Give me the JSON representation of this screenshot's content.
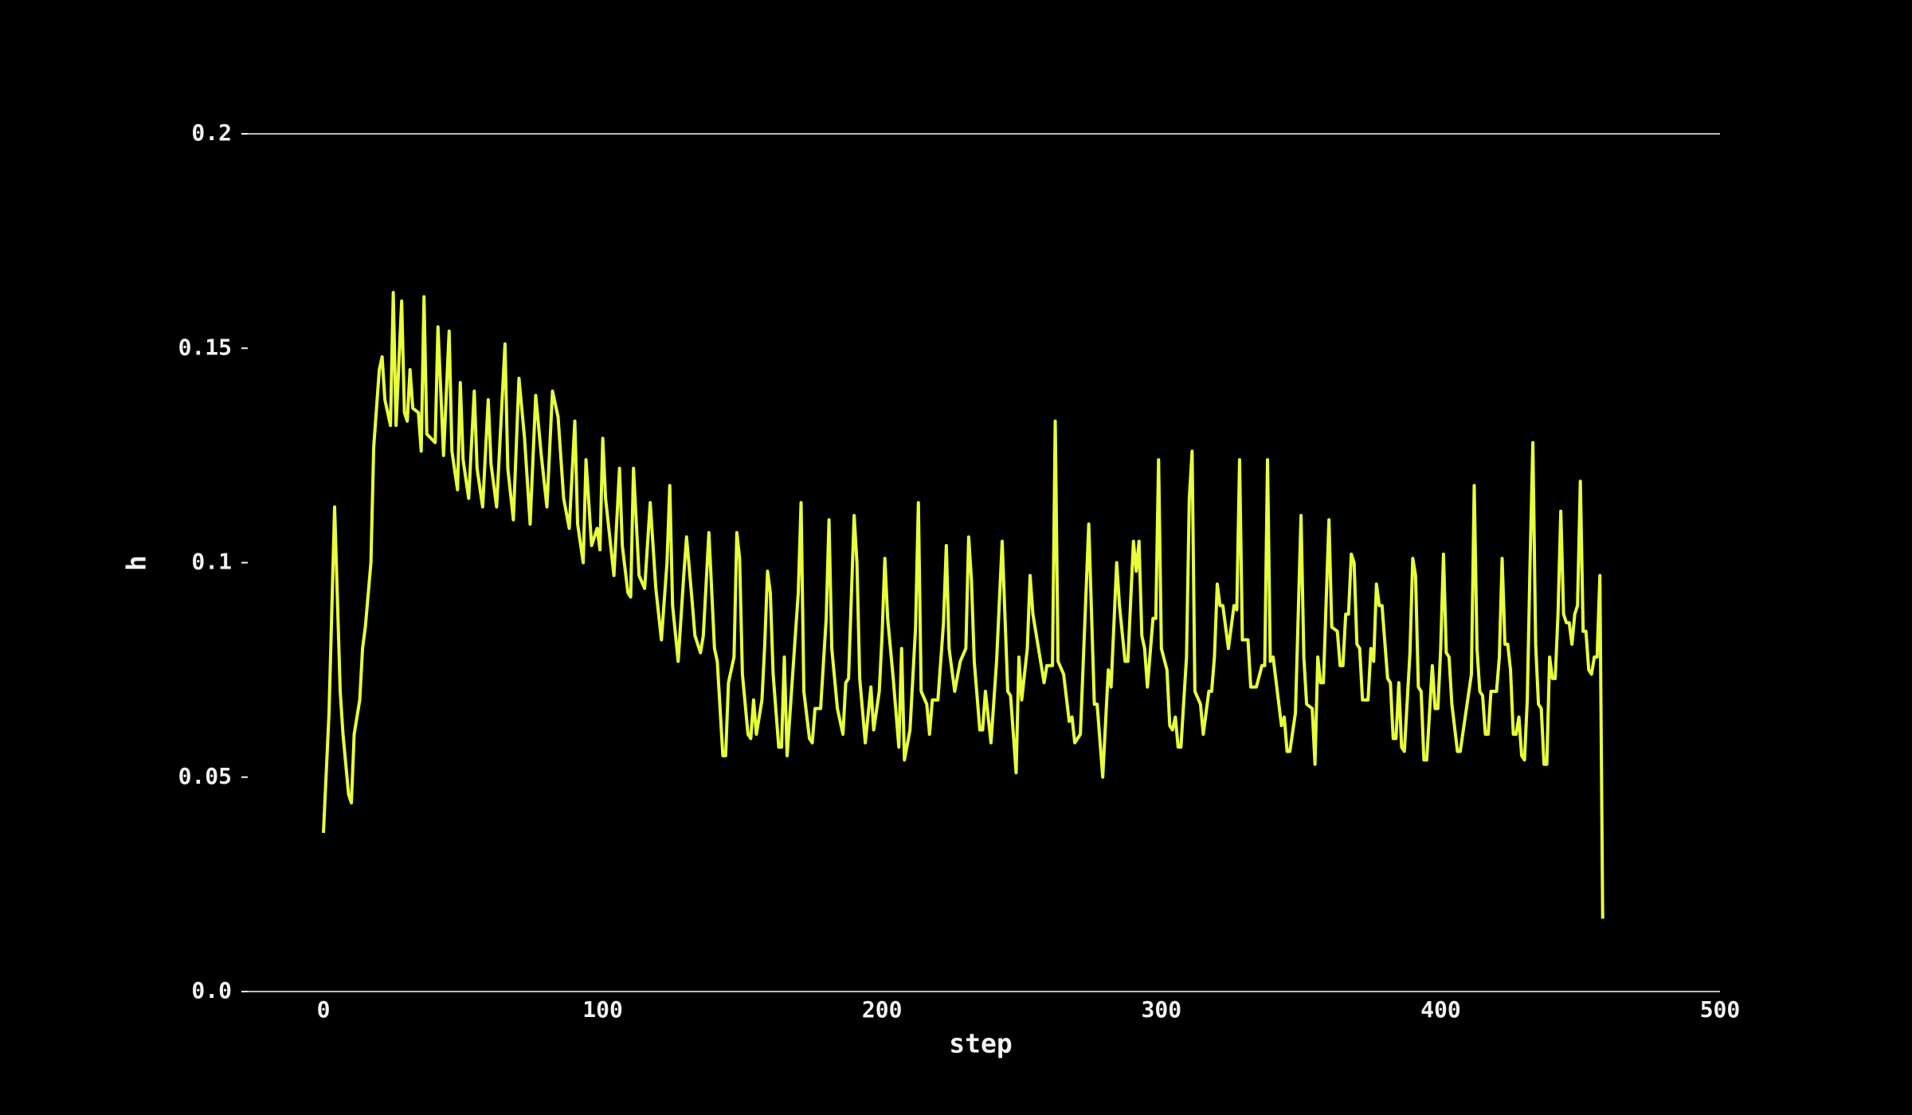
{
  "chart_data": {
    "type": "line",
    "xlabel": "step",
    "ylabel": "h",
    "color": "#e8ff3c",
    "xlim": [
      0,
      500
    ],
    "xticks": [
      0,
      100,
      200,
      300,
      400,
      500
    ],
    "ylim": [
      0,
      0.2
    ],
    "yticks": [
      {
        "value": 0,
        "label": "0.0"
      },
      0.05,
      0.1,
      0.15,
      0.2
    ],
    "x": [
      0,
      2,
      4,
      6,
      7,
      9,
      10,
      11,
      13,
      14,
      15,
      17,
      18,
      20,
      21,
      22,
      24,
      25,
      26,
      28,
      29,
      30,
      31,
      32,
      34,
      35,
      36,
      37,
      40,
      41,
      43,
      45,
      46,
      48,
      49,
      50,
      52,
      54,
      55,
      57,
      59,
      60,
      62,
      65,
      66,
      68,
      70,
      72,
      74,
      76,
      78,
      80,
      82,
      84,
      86,
      88,
      90,
      91,
      93,
      94,
      96,
      98,
      99,
      100,
      101,
      104,
      106,
      107,
      109,
      110,
      111,
      113,
      115,
      117,
      119,
      121,
      123,
      124,
      125,
      127,
      129,
      130,
      132,
      133,
      135,
      136,
      138,
      140,
      141,
      143,
      144,
      145,
      147,
      148,
      149,
      150,
      152,
      153,
      154,
      155,
      157,
      158,
      159,
      160,
      161,
      163,
      164,
      165,
      166,
      168,
      170,
      171,
      172,
      174,
      175,
      176,
      178,
      180,
      181,
      182,
      184,
      186,
      187,
      188,
      190,
      191,
      192,
      194,
      196,
      197,
      199,
      200,
      201,
      202,
      204,
      206,
      207,
      208,
      210,
      212,
      213,
      214,
      216,
      217,
      218,
      220,
      222,
      223,
      224,
      226,
      228,
      230,
      231,
      232,
      233,
      235,
      236,
      237,
      239,
      241,
      243,
      245,
      246,
      248,
      249,
      250,
      252,
      253,
      254,
      256,
      258,
      259,
      261,
      262,
      263,
      265,
      267,
      268,
      269,
      271,
      274,
      276,
      277,
      279,
      281,
      282,
      284,
      285,
      287,
      288,
      290,
      291,
      292,
      293,
      294,
      295,
      297,
      298,
      299,
      300,
      302,
      303,
      304,
      305,
      306,
      307,
      309,
      310,
      311,
      312,
      314,
      315,
      317,
      318,
      319,
      320,
      321,
      322,
      324,
      326,
      327,
      328,
      329,
      331,
      332,
      334,
      336,
      337,
      338,
      339,
      340,
      343,
      344,
      345,
      346,
      348,
      350,
      351,
      352,
      354,
      355,
      356,
      357,
      358,
      360,
      361,
      363,
      364,
      365,
      366,
      367,
      368,
      369,
      370,
      371,
      372,
      374,
      375,
      376,
      377,
      378,
      379,
      381,
      382,
      383,
      384,
      385,
      386,
      387,
      389,
      390,
      391,
      392,
      393,
      394,
      395,
      397,
      398,
      399,
      400,
      401,
      402,
      403,
      404,
      406,
      407,
      409,
      411,
      412,
      413,
      414,
      415,
      416,
      417,
      418,
      420,
      421,
      422,
      423,
      424,
      425,
      426,
      427,
      428,
      429,
      430,
      431,
      432,
      433,
      434,
      435,
      436,
      437,
      438,
      439,
      440,
      441,
      442,
      443,
      444,
      445,
      446,
      447,
      448,
      449,
      450,
      451,
      452,
      453,
      454,
      455,
      456,
      457,
      458
    ],
    "values": [
      0.037,
      0.065,
      0.113,
      0.07,
      0.06,
      0.046,
      0.044,
      0.06,
      0.068,
      0.08,
      0.085,
      0.1,
      0.127,
      0.145,
      0.148,
      0.138,
      0.132,
      0.163,
      0.132,
      0.161,
      0.135,
      0.133,
      0.145,
      0.136,
      0.135,
      0.126,
      0.162,
      0.13,
      0.128,
      0.155,
      0.125,
      0.154,
      0.126,
      0.117,
      0.142,
      0.124,
      0.115,
      0.14,
      0.122,
      0.113,
      0.138,
      0.123,
      0.113,
      0.151,
      0.122,
      0.11,
      0.143,
      0.129,
      0.109,
      0.139,
      0.125,
      0.113,
      0.14,
      0.134,
      0.115,
      0.108,
      0.133,
      0.109,
      0.1,
      0.124,
      0.104,
      0.108,
      0.103,
      0.129,
      0.115,
      0.097,
      0.122,
      0.104,
      0.093,
      0.092,
      0.122,
      0.097,
      0.094,
      0.114,
      0.094,
      0.082,
      0.1,
      0.118,
      0.09,
      0.077,
      0.097,
      0.106,
      0.091,
      0.083,
      0.079,
      0.083,
      0.107,
      0.08,
      0.077,
      0.055,
      0.055,
      0.072,
      0.078,
      0.107,
      0.101,
      0.074,
      0.06,
      0.059,
      0.068,
      0.06,
      0.068,
      0.081,
      0.098,
      0.093,
      0.074,
      0.057,
      0.057,
      0.078,
      0.055,
      0.074,
      0.093,
      0.114,
      0.07,
      0.059,
      0.058,
      0.066,
      0.066,
      0.087,
      0.11,
      0.08,
      0.066,
      0.06,
      0.072,
      0.073,
      0.111,
      0.1,
      0.073,
      0.058,
      0.071,
      0.061,
      0.07,
      0.083,
      0.101,
      0.087,
      0.073,
      0.057,
      0.08,
      0.054,
      0.061,
      0.085,
      0.114,
      0.07,
      0.067,
      0.06,
      0.068,
      0.068,
      0.086,
      0.104,
      0.08,
      0.07,
      0.077,
      0.08,
      0.106,
      0.096,
      0.077,
      0.061,
      0.061,
      0.07,
      0.058,
      0.077,
      0.105,
      0.07,
      0.069,
      0.051,
      0.078,
      0.068,
      0.08,
      0.097,
      0.088,
      0.08,
      0.072,
      0.076,
      0.076,
      0.133,
      0.077,
      0.074,
      0.063,
      0.064,
      0.058,
      0.06,
      0.109,
      0.067,
      0.067,
      0.05,
      0.075,
      0.071,
      0.1,
      0.09,
      0.077,
      0.077,
      0.105,
      0.098,
      0.105,
      0.083,
      0.08,
      0.071,
      0.087,
      0.087,
      0.124,
      0.08,
      0.075,
      0.062,
      0.061,
      0.064,
      0.057,
      0.057,
      0.078,
      0.115,
      0.126,
      0.07,
      0.067,
      0.06,
      0.07,
      0.07,
      0.078,
      0.095,
      0.09,
      0.09,
      0.08,
      0.09,
      0.089,
      0.124,
      0.082,
      0.082,
      0.071,
      0.071,
      0.076,
      0.076,
      0.124,
      0.077,
      0.078,
      0.062,
      0.064,
      0.056,
      0.056,
      0.065,
      0.111,
      0.078,
      0.067,
      0.066,
      0.053,
      0.078,
      0.072,
      0.072,
      0.11,
      0.085,
      0.084,
      0.076,
      0.076,
      0.088,
      0.088,
      0.102,
      0.1,
      0.081,
      0.08,
      0.068,
      0.068,
      0.08,
      0.077,
      0.095,
      0.09,
      0.09,
      0.073,
      0.072,
      0.059,
      0.059,
      0.072,
      0.057,
      0.056,
      0.079,
      0.101,
      0.097,
      0.071,
      0.07,
      0.054,
      0.054,
      0.076,
      0.066,
      0.066,
      0.08,
      0.102,
      0.079,
      0.078,
      0.067,
      0.056,
      0.056,
      0.065,
      0.074,
      0.118,
      0.08,
      0.07,
      0.069,
      0.06,
      0.06,
      0.07,
      0.07,
      0.078,
      0.101,
      0.081,
      0.081,
      0.075,
      0.06,
      0.06,
      0.064,
      0.055,
      0.054,
      0.068,
      0.1,
      0.128,
      0.081,
      0.067,
      0.066,
      0.053,
      0.053,
      0.078,
      0.073,
      0.073,
      0.088,
      0.112,
      0.088,
      0.086,
      0.086,
      0.081,
      0.088,
      0.09,
      0.119,
      0.084,
      0.084,
      0.075,
      0.074,
      0.078,
      0.078,
      0.097,
      0.017
    ]
  }
}
